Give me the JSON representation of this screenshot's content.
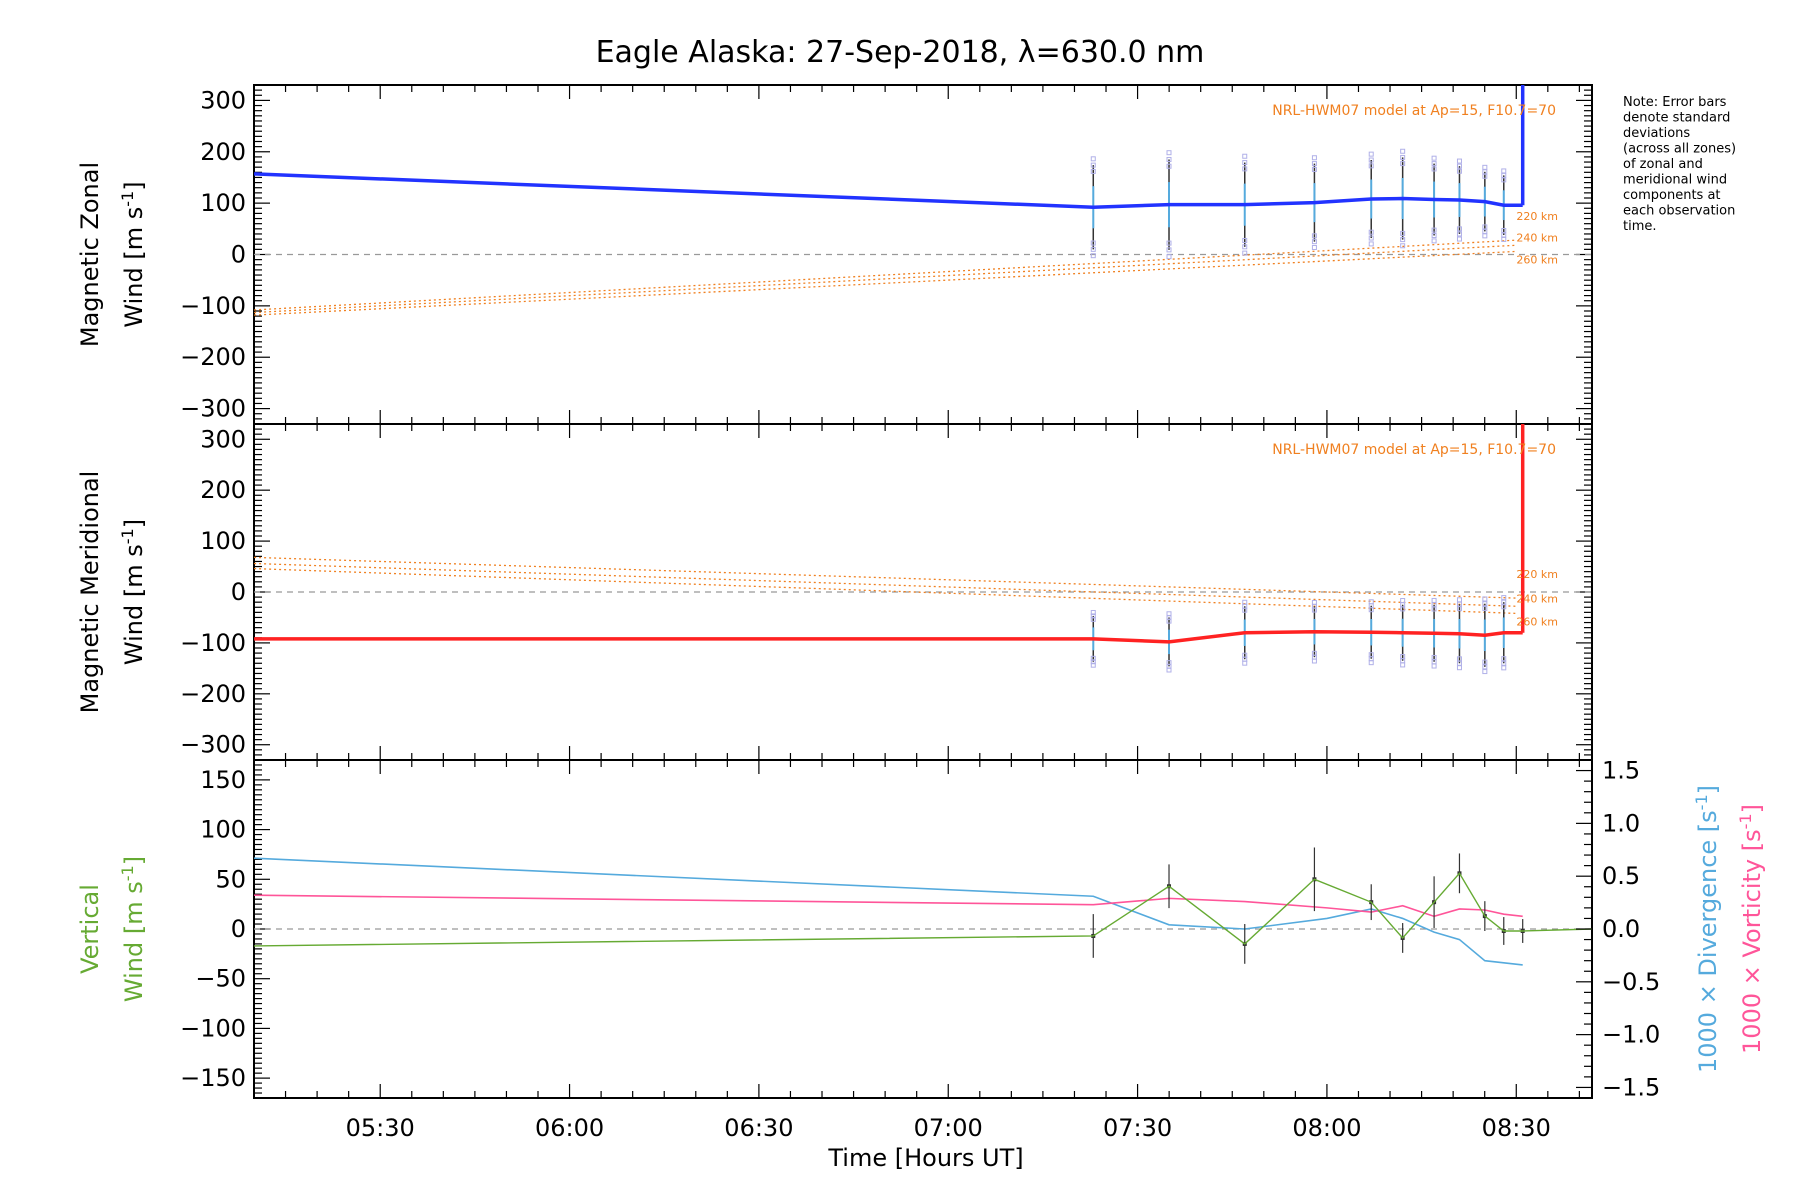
{
  "colors": {
    "zonal": "#2233ff",
    "meridional": "#ff2222",
    "model": "#f08020",
    "vertical": "#66aa33",
    "divergence": "#55aadd",
    "vorticity": "#ff5599",
    "errorbar": "#333333",
    "zones": "#b0b0e8",
    "zero": "#999999"
  },
  "chart_data": [
    {
      "id": "zonal",
      "type": "line",
      "title": "Eagle Alaska: 27-Sep-2018, λ=630.0 nm",
      "ylabel_line1": "Magnetic Zonal",
      "ylabel_line2": "Wind",
      "ylabel_unit": "[m s",
      "ylabel_exp": "-1",
      "ylabel_close": "]",
      "ylim": [
        -330,
        330
      ],
      "yticks": [
        -300,
        -200,
        -100,
        0,
        100,
        200,
        300
      ],
      "ytick_labels": [
        "−300",
        "−200",
        "−100",
        "0",
        "100",
        "200",
        "300"
      ],
      "model_label": "NRL-HWM07 model at Ap=15, F10.7=70",
      "altitude_labels": [
        "220 km",
        "240 km",
        "260 km"
      ],
      "observed": {
        "x": [
          5.167,
          7.383,
          7.583,
          7.783,
          7.967,
          8.117,
          8.2,
          8.283,
          8.35,
          8.417,
          8.467,
          8.517
        ],
        "y": [
          157,
          92,
          97,
          97,
          101,
          108,
          109,
          107,
          106,
          103,
          96,
          96
        ],
        "err": [
          0,
          82,
          88,
          82,
          76,
          76,
          80,
          70,
          66,
          58,
          58,
          0
        ]
      },
      "model": [
        {
          "name": "220 km",
          "x": [
            5.167,
            8.5
          ],
          "y": [
            -108,
            28
          ]
        },
        {
          "name": "240 km",
          "x": [
            5.167,
            8.5
          ],
          "y": [
            -113,
            18
          ]
        },
        {
          "name": "260 km",
          "x": [
            5.167,
            8.5
          ],
          "y": [
            -118,
            6
          ]
        }
      ]
    },
    {
      "id": "meridional",
      "type": "line",
      "ylabel_line1": "Magnetic Meridional",
      "ylabel_line2": "Wind",
      "ylabel_unit": "[m s",
      "ylabel_exp": "-1",
      "ylabel_close": "]",
      "ylim": [
        -330,
        330
      ],
      "yticks": [
        -300,
        -200,
        -100,
        0,
        100,
        200,
        300
      ],
      "ytick_labels": [
        "−300",
        "−200",
        "−100",
        "0",
        "100",
        "200",
        "300"
      ],
      "model_label": "NRL-HWM07 model at Ap=15, F10.7=70",
      "altitude_labels": [
        "220 km",
        "240 km",
        "260 km"
      ],
      "observed": {
        "x": [
          5.167,
          7.383,
          7.583,
          7.783,
          7.967,
          8.117,
          8.2,
          8.283,
          8.35,
          8.417,
          8.467,
          8.517
        ],
        "y": [
          -92,
          -92,
          -98,
          -80,
          -78,
          -79,
          -80,
          -81,
          -82,
          -85,
          -80,
          -80
        ],
        "err": [
          0,
          45,
          48,
          52,
          50,
          52,
          55,
          56,
          58,
          62,
          60,
          0
        ]
      },
      "model": [
        {
          "name": "220 km",
          "x": [
            5.167,
            8.5
          ],
          "y": [
            68,
            -12
          ]
        },
        {
          "name": "240 km",
          "x": [
            5.167,
            8.5
          ],
          "y": [
            56,
            -28
          ]
        },
        {
          "name": "260 km",
          "x": [
            5.167,
            8.5
          ],
          "y": [
            46,
            -42
          ]
        }
      ]
    },
    {
      "id": "vertical",
      "type": "line",
      "ylabel_line1": "Vertical",
      "ylabel_line2": "Wind",
      "ylabel_unit": "[m s",
      "ylabel_exp": "-1",
      "ylabel_close": "]",
      "ylim": [
        -170,
        170
      ],
      "yticks": [
        -150,
        -100,
        -50,
        0,
        50,
        100,
        150
      ],
      "ytick_labels": [
        "−150",
        "−100",
        "−50",
        "0",
        "50",
        "100",
        "150"
      ],
      "y2lim": [
        -1.6,
        1.6
      ],
      "y2ticks": [
        -1.5,
        -1.0,
        -0.5,
        0.0,
        0.5,
        1.0,
        1.5
      ],
      "y2tick_labels": [
        "−1.5",
        "−1.0",
        "−0.5",
        "0.0",
        "0.5",
        "1.0",
        "1.5"
      ],
      "y2label_div": "1000 × Divergence [s",
      "y2label_vort": "1000 × Vorticity [s",
      "y2label_exp": "-1",
      "y2label_close": "]",
      "xlabel": "Time [Hours UT]",
      "xlim": [
        5.1667,
        8.7
      ],
      "xticks": [
        5.5,
        6.0,
        6.5,
        7.0,
        7.5,
        8.0,
        8.5
      ],
      "xtick_labels": [
        "05:30",
        "06:00",
        "06:30",
        "07:00",
        "07:30",
        "08:00",
        "08:30"
      ],
      "vertical": {
        "x": [
          5.167,
          7.383,
          7.583,
          7.783,
          7.967,
          8.117,
          8.2,
          8.283,
          8.35,
          8.417,
          8.467,
          8.517,
          8.7
        ],
        "y": [
          -17,
          -7,
          43,
          -15,
          50,
          27,
          -9,
          27,
          56,
          13,
          -2,
          -2,
          0
        ],
        "err": [
          0,
          22,
          22,
          20,
          32,
          18,
          15,
          26,
          20,
          15,
          14,
          12,
          0
        ]
      },
      "divergence": {
        "x": [
          5.167,
          7.383,
          7.583,
          7.783,
          8.0,
          8.117,
          8.2,
          8.283,
          8.35,
          8.417,
          8.517
        ],
        "y": [
          0.67,
          0.31,
          0.04,
          0.0,
          0.1,
          0.19,
          0.1,
          -0.03,
          -0.1,
          -0.3,
          -0.34
        ]
      },
      "vorticity": {
        "x": [
          5.167,
          7.383,
          7.583,
          7.783,
          8.0,
          8.117,
          8.2,
          8.283,
          8.35,
          8.417,
          8.467,
          8.517
        ],
        "y": [
          0.32,
          0.23,
          0.29,
          0.26,
          0.2,
          0.16,
          0.22,
          0.12,
          0.19,
          0.18,
          0.14,
          0.12
        ]
      }
    }
  ],
  "note": {
    "lines": [
      "Note: Error bars",
      "denote standard",
      "deviations",
      "(across all zones)",
      "of zonal and",
      "meridional wind",
      "components at",
      "each observation",
      "time."
    ]
  }
}
